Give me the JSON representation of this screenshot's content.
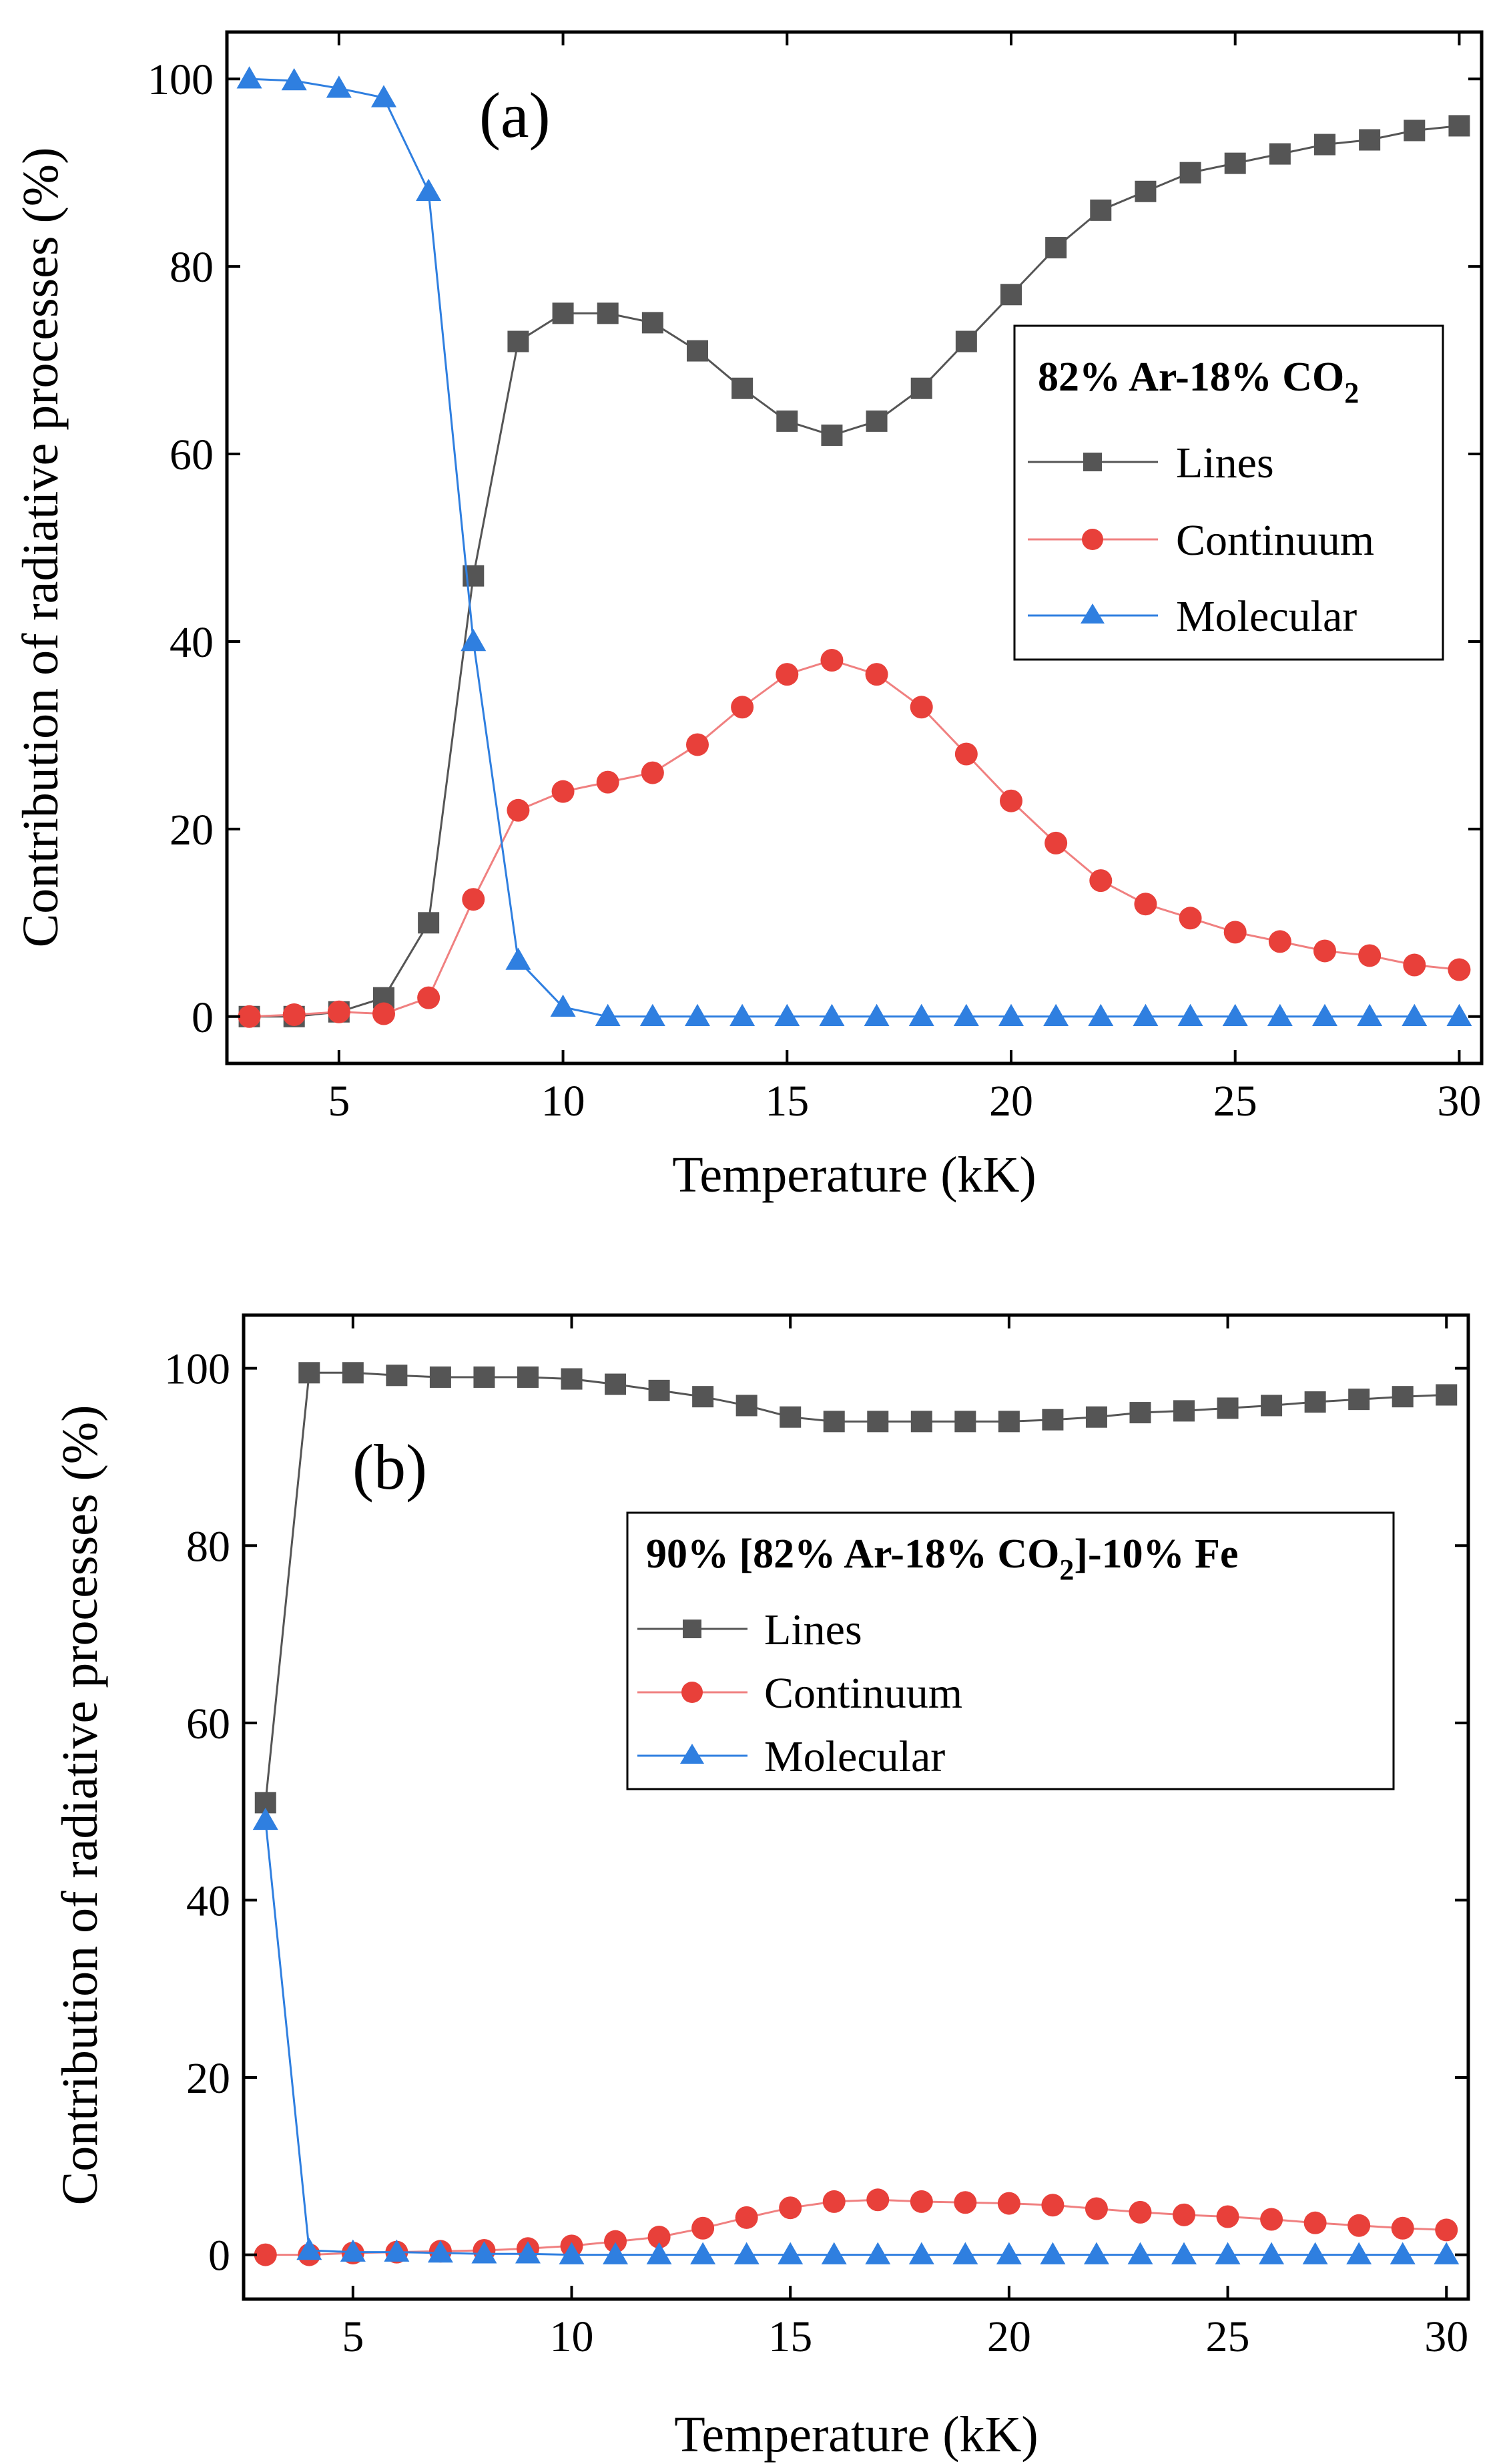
{
  "chart_data": [
    {
      "type": "line",
      "panel": "(a)",
      "legend_title": {
        "main": "82% Ar-18% CO",
        "sub": "2",
        "tail": ""
      },
      "xlabel": "Temperature (kK)",
      "ylabel": "Contribution of radiative processes (%)",
      "xlim": [
        2.5,
        30.5
      ],
      "ylim": [
        -5,
        105
      ],
      "xticks": [
        5,
        10,
        15,
        20,
        25,
        30
      ],
      "yticks": [
        0,
        20,
        40,
        60,
        80,
        100
      ],
      "x": [
        3,
        4,
        5,
        6,
        7,
        8,
        9,
        10,
        11,
        12,
        13,
        14,
        15,
        16,
        17,
        18,
        19,
        20,
        21,
        22,
        23,
        24,
        25,
        26,
        27,
        28,
        29,
        30
      ],
      "series": [
        {
          "name": "Lines",
          "color": "#555555",
          "line_color": "#555555",
          "marker": "square",
          "values": [
            0,
            0,
            0.5,
            2,
            10,
            47,
            72,
            75,
            75,
            74,
            71,
            67,
            63.5,
            62,
            63.5,
            67,
            72,
            77,
            82,
            86,
            88,
            90,
            91,
            92,
            93,
            93.5,
            94.5,
            95
          ]
        },
        {
          "name": "Continuum",
          "color": "#e8403a",
          "line_color": "#f08080",
          "marker": "circle",
          "values": [
            0,
            0.2,
            0.5,
            0.3,
            2,
            12.5,
            22,
            24,
            25,
            26,
            29,
            33,
            36.5,
            38,
            36.5,
            33,
            28,
            23,
            18.5,
            14.5,
            12,
            10.5,
            9,
            8,
            7,
            6.5,
            5.5,
            5
          ]
        },
        {
          "name": "Molecular",
          "color": "#2f7fe0",
          "line_color": "#2f7fe0",
          "marker": "triangle",
          "values": [
            100,
            99.8,
            99,
            98,
            88,
            40,
            6,
            1,
            0,
            0,
            0,
            0,
            0,
            0,
            0,
            0,
            0,
            0,
            0,
            0,
            0,
            0,
            0,
            0,
            0,
            0,
            0,
            0
          ]
        }
      ]
    },
    {
      "type": "line",
      "panel": "(b)",
      "legend_title": {
        "main": "90% [82% Ar-18% CO",
        "sub": "2",
        "tail": "]-10% Fe"
      },
      "xlabel": "Temperature (kK)",
      "ylabel": "Contribution of radiative processes (%)",
      "xlim": [
        2.5,
        30.5
      ],
      "ylim": [
        -5,
        106
      ],
      "xticks": [
        5,
        10,
        15,
        20,
        25,
        30
      ],
      "yticks": [
        0,
        20,
        40,
        60,
        80,
        100
      ],
      "x": [
        3,
        4,
        5,
        6,
        7,
        8,
        9,
        10,
        11,
        12,
        13,
        14,
        15,
        16,
        17,
        18,
        19,
        20,
        21,
        22,
        23,
        24,
        25,
        26,
        27,
        28,
        29,
        30
      ],
      "series": [
        {
          "name": "Lines",
          "color": "#555555",
          "line_color": "#555555",
          "marker": "square",
          "values": [
            51,
            99.5,
            99.5,
            99.2,
            99,
            99,
            99,
            98.8,
            98.2,
            97.5,
            96.8,
            95.8,
            94.5,
            94,
            94,
            94,
            94,
            94,
            94.2,
            94.5,
            95,
            95.2,
            95.5,
            95.8,
            96.2,
            96.5,
            96.8,
            97
          ]
        },
        {
          "name": "Continuum",
          "color": "#e8403a",
          "line_color": "#f08080",
          "marker": "circle",
          "values": [
            0,
            0,
            0.2,
            0.3,
            0.4,
            0.5,
            0.7,
            1.0,
            1.5,
            2.0,
            3.0,
            4.2,
            5.3,
            6.0,
            6.2,
            6.0,
            5.9,
            5.8,
            5.6,
            5.2,
            4.8,
            4.5,
            4.3,
            4.0,
            3.6,
            3.3,
            3.0,
            2.8
          ]
        },
        {
          "name": "Molecular",
          "color": "#2f7fe0",
          "line_color": "#2f7fe0",
          "marker": "triangle",
          "values": [
            49,
            0.5,
            0.3,
            0.3,
            0.2,
            0.1,
            0.1,
            0,
            0,
            0,
            0,
            0,
            0,
            0,
            0,
            0,
            0,
            0,
            0,
            0,
            0,
            0,
            0,
            0,
            0,
            0,
            0,
            0
          ]
        }
      ]
    }
  ]
}
